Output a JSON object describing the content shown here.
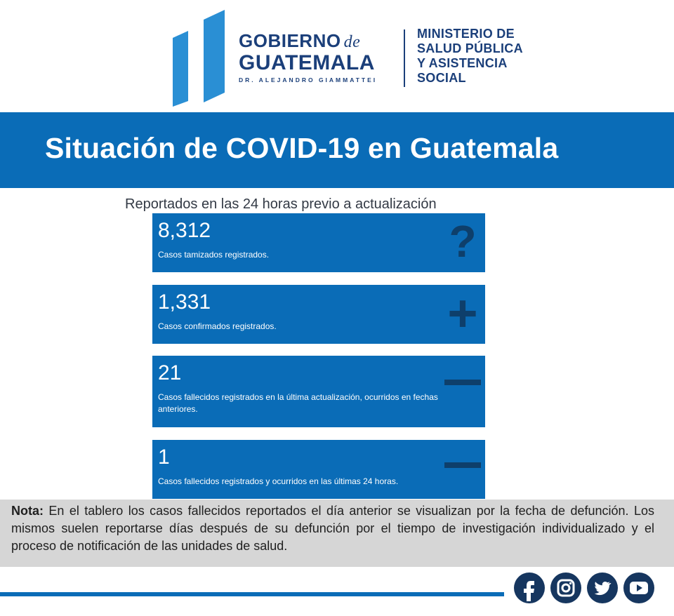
{
  "header": {
    "gov_word1": "GOBIERNO",
    "gov_word_de": "de",
    "gov_word2": "GUATEMALA",
    "gov_president": "DR. ALEJANDRO GIAMMATTEI",
    "ministry_lines": [
      "MINISTERIO DE",
      "SALUD PÚBLICA",
      "Y ASISTENCIA",
      "SOCIAL"
    ]
  },
  "title": "Situación de COVID-19 en Guatemala",
  "subtitle": "Reportados en las 24 horas previo a actualización",
  "cards": [
    {
      "value": "8,312",
      "label": "Casos tamizados registrados.",
      "icon": "question-icon"
    },
    {
      "value": "1,331",
      "label": "Casos confirmados registrados.",
      "icon": "plus-icon"
    },
    {
      "value": "21",
      "label": "Casos fallecidos registrados en la última actualización, ocurridos en fechas anteriores.",
      "icon": "minus-icon"
    },
    {
      "value": "1",
      "label": "Casos fallecidos registrados y ocurridos en las últimas 24 horas.",
      "icon": "minus-icon"
    }
  ],
  "note": {
    "prefix": "Nota:",
    "text": "En el tablero los casos fallecidos reportados el día anterior se visualizan por la fecha de defunción. Los mismos suelen reportarse días después de su defunción por el tiempo de investigación individualizado y el proceso de notificación de las unidades de salud."
  },
  "social_icons": [
    "facebook-icon",
    "instagram-icon",
    "twitter-icon",
    "youtube-icon"
  ],
  "colors": {
    "brand_blue": "#0a6cb7",
    "dark_navy": "#16365f",
    "logo_blue": "#1b3f7a",
    "note_gray": "#d6d6d6"
  }
}
